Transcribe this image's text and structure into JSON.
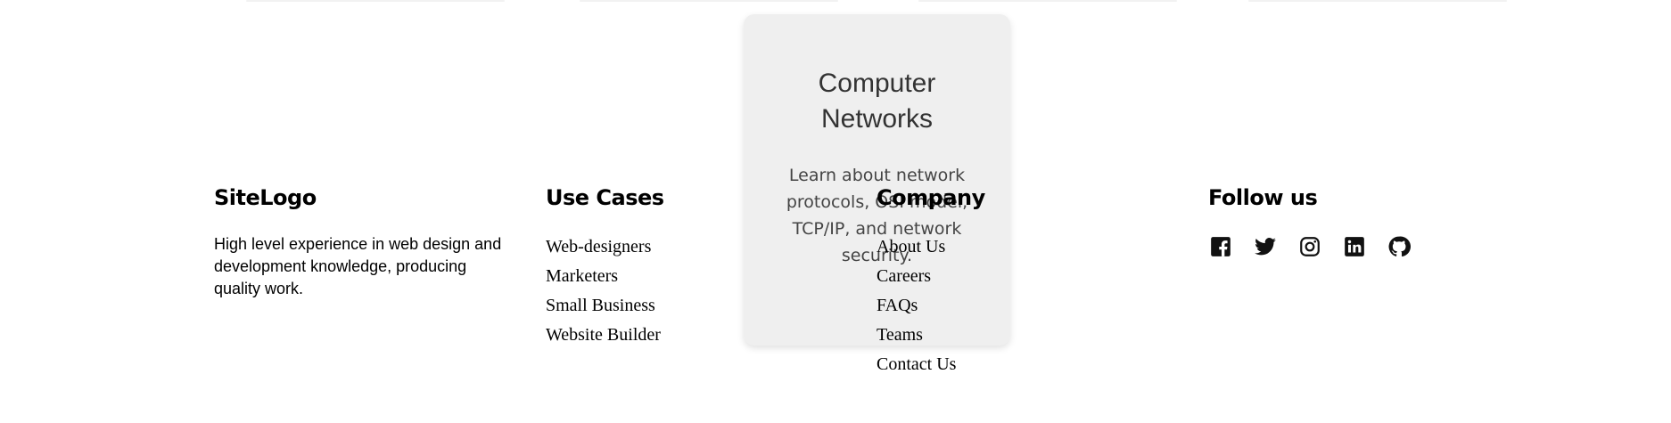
{
  "card": {
    "title": "Computer Networks",
    "text": "Learn about network protocols, OSI model, TCP/IP, and network security."
  },
  "footer": {
    "logo": "SiteLogo",
    "description": "High level experience in web design and development knowledge, producing quality work.",
    "columns": [
      {
        "heading": "Use Cases",
        "links": [
          "Web-designers",
          "Marketers",
          "Small Business",
          "Website Builder"
        ]
      },
      {
        "heading": "Company",
        "links": [
          "About Us",
          "Careers",
          "FAQs",
          "Teams",
          "Contact Us"
        ]
      }
    ],
    "follow": "Follow us"
  }
}
